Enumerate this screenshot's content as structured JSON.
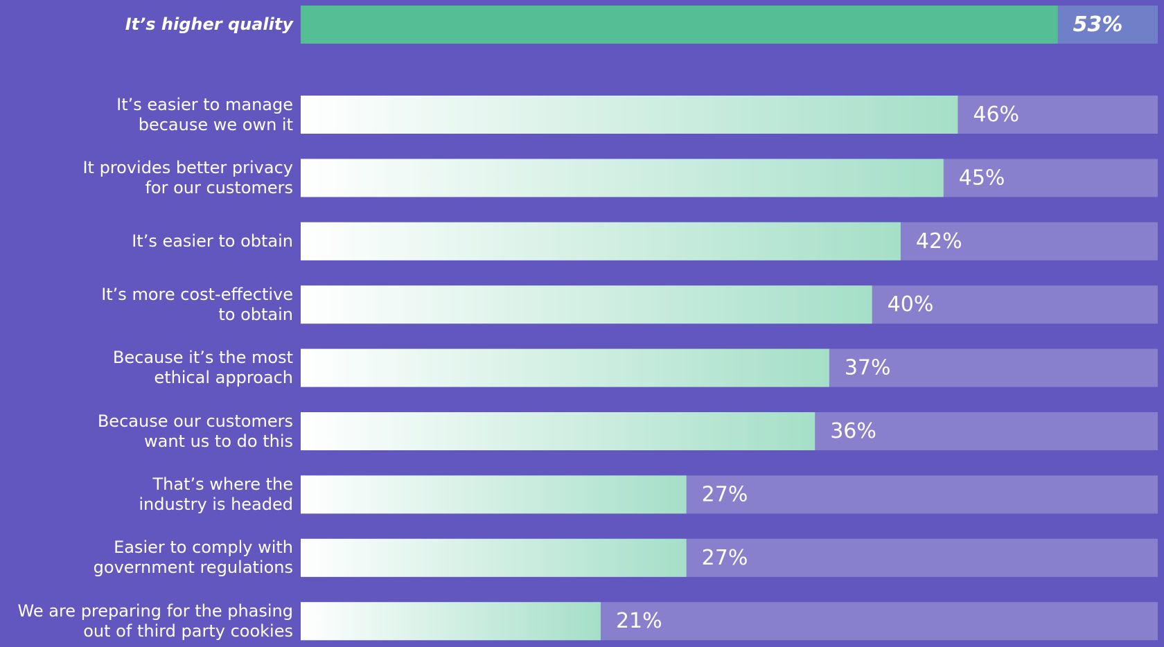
{
  "chart_data": {
    "type": "bar",
    "orientation": "horizontal",
    "categories": [
      "It’s higher quality",
      "It’s easier to manage\nbecause we own it",
      "It provides better privacy\nfor our customers",
      "It’s easier to obtain",
      "It’s more cost-effective\nto obtain",
      "Because it’s the most\nethical approach",
      "Because our customers\nwant us to do this",
      "That’s where the\nindustry is headed",
      "Easier to comply with\ngovernment regulations",
      "We are preparing for the phasing\nout of third party cookies"
    ],
    "values": [
      53,
      46,
      45,
      42,
      40,
      37,
      36,
      27,
      27,
      21
    ],
    "value_labels": [
      "53%",
      "46%",
      "45%",
      "42%",
      "40%",
      "37%",
      "36%",
      "27%",
      "27%",
      "21%"
    ],
    "color": "#a5dfc8",
    "highlight_color": "#55be95",
    "xlim": [
      0,
      60
    ]
  }
}
